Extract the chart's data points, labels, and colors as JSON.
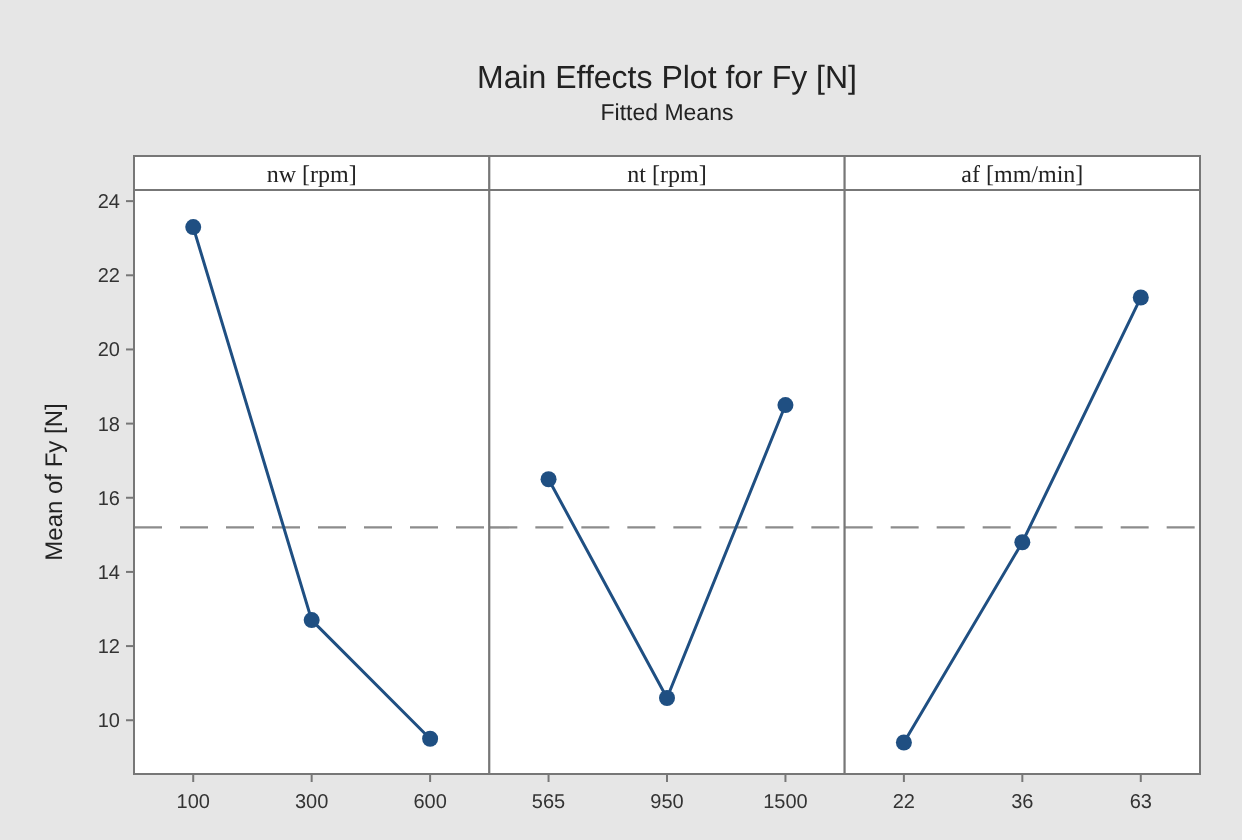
{
  "chart_data": [
    {
      "type": "other",
      "title": "Main Effects Plot for Fy [N]",
      "subtitle": "Fitted Means"
    },
    {
      "type": "line",
      "title": "nw [rpm]",
      "ylabel": "Mean of Fy [N]",
      "categories": [
        "100",
        "300",
        "600"
      ],
      "series": [
        {
          "color": "#1f4f82",
          "values": [
            23.3,
            12.7,
            9.5
          ]
        }
      ],
      "ylim": [
        8.55,
        24.3
      ],
      "yticks": [
        10,
        12,
        14,
        16,
        18,
        20,
        22,
        24
      ],
      "marker": "circle",
      "ref_lines": [
        {
          "axis": "y",
          "value": 15.2,
          "line_style": "dashed",
          "color": "#8c8c8c"
        }
      ]
    },
    {
      "type": "line",
      "title": "nt [rpm]",
      "categories": [
        "565",
        "950",
        "1500"
      ],
      "series": [
        {
          "color": "#1f4f82",
          "values": [
            16.5,
            10.6,
            18.5
          ]
        }
      ],
      "ylim": [
        8.55,
        24.3
      ],
      "yticks": [
        10,
        12,
        14,
        16,
        18,
        20,
        22,
        24
      ],
      "tick_labels": "x",
      "marker": "circle",
      "ref_lines": [
        {
          "axis": "y",
          "value": 15.2,
          "line_style": "dashed",
          "color": "#8c8c8c"
        }
      ]
    },
    {
      "type": "line",
      "title": "af [mm/min]",
      "categories": [
        "22",
        "36",
        "63"
      ],
      "series": [
        {
          "color": "#1f4f82",
          "values": [
            9.4,
            14.8,
            21.4
          ]
        }
      ],
      "ylim": [
        8.55,
        24.3
      ],
      "yticks": [
        10,
        12,
        14,
        16,
        18,
        20,
        22,
        24
      ],
      "tick_labels": "x",
      "marker": "circle",
      "ref_lines": [
        {
          "axis": "y",
          "value": 15.2,
          "line_style": "dashed",
          "color": "#8c8c8c"
        }
      ]
    }
  ]
}
